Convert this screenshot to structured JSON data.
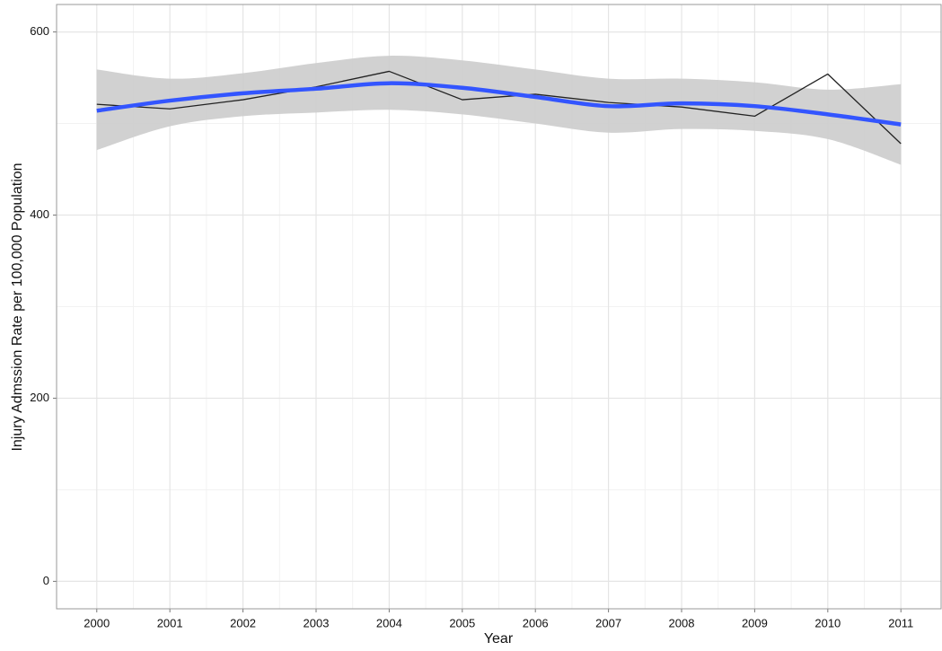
{
  "chart_data": {
    "type": "line",
    "x_label": "Year",
    "y_label": "Injury Admssion Rate per 100,000 Population",
    "x": [
      2000,
      2001,
      2002,
      2003,
      2004,
      2005,
      2006,
      2007,
      2008,
      2009,
      2010,
      2011
    ],
    "series": [
      {
        "color": "#222222",
        "width": 1.3,
        "values": [
          521,
          516,
          526,
          540,
          557,
          526,
          532,
          523,
          518,
          508,
          554,
          478
        ]
      },
      {
        "color": "#3355ff",
        "width": 4.5,
        "values": [
          514,
          525,
          533,
          538,
          544,
          539,
          529,
          519,
          522,
          519,
          510,
          499
        ],
        "lower": [
          471,
          497,
          508,
          512,
          515,
          510,
          500,
          490,
          494,
          492,
          483,
          455
        ],
        "upper": [
          559,
          549,
          555,
          566,
          574,
          569,
          559,
          549,
          549,
          545,
          537,
          543
        ],
        "band_color": "#cccccc"
      }
    ],
    "xlim": [
      1999.45,
      2011.55
    ],
    "ylim": [
      -30,
      630
    ],
    "xticks": [
      2000,
      2001,
      2002,
      2003,
      2004,
      2005,
      2006,
      2007,
      2008,
      2009,
      2010,
      2011
    ],
    "yticks": [
      0,
      200,
      400,
      600
    ],
    "grid": true
  }
}
